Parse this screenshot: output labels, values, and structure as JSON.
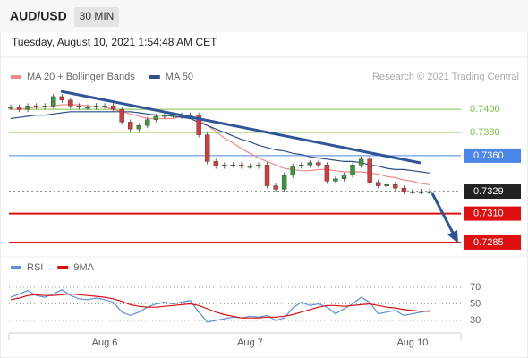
{
  "header": {
    "symbol": "AUD/USD",
    "interval": "30 MIN",
    "timestamp": "Tuesday, August 10, 2021 1:54:48 AM CET",
    "credit": "Research © 2021 Trading Central"
  },
  "chart_data": [
    {
      "type": "candle-line",
      "values": [
        0.7402,
        0.74,
        0.7403,
        0.7402,
        0.7403,
        0.7411,
        0.7408,
        0.7403,
        0.7402,
        0.7402,
        0.7403,
        0.7403,
        0.74,
        0.7389,
        0.7383,
        0.7386,
        0.7391,
        0.7394,
        0.7395,
        0.7395,
        0.7394,
        0.7395,
        0.7378,
        0.7355,
        0.7351,
        0.7352,
        0.7352,
        0.7351,
        0.7351,
        0.7352,
        0.7334,
        0.7331,
        0.7343,
        0.7351,
        0.7352,
        0.7354,
        0.7352,
        0.7338,
        0.734,
        0.7343,
        0.7352,
        0.7357,
        0.7337,
        0.7334,
        0.7335,
        0.7332,
        0.7329,
        0.7329,
        0.7329,
        0.7329
      ],
      "up_color": "#3a9a3a",
      "down_color": "#d83a3a",
      "series": [
        {
          "name": "MA 20 + Bollinger Bands",
          "color": "#f08a8a",
          "values": [
            0.74,
            0.74,
            0.7401,
            0.7402,
            0.7402,
            0.7403,
            0.7404,
            0.7404,
            0.7404,
            0.7403,
            0.7402,
            0.7402,
            0.74,
            0.7398,
            0.7396,
            0.7394,
            0.7392,
            0.7392,
            0.7392,
            0.7392,
            0.7394,
            0.7394,
            0.7391,
            0.7386,
            0.7381,
            0.7375,
            0.7371,
            0.7366,
            0.7362,
            0.7358,
            0.7355,
            0.7352,
            0.7349,
            0.7348,
            0.7347,
            0.7347,
            0.7348,
            0.7348,
            0.7347,
            0.7346,
            0.7346,
            0.7346,
            0.7345,
            0.7344,
            0.7342,
            0.7341,
            0.7339,
            0.7338,
            0.7336,
            0.7335
          ]
        },
        {
          "name": "MA 50",
          "color": "#2e4f8a",
          "values": [
            0.7392,
            0.7393,
            0.7394,
            0.7395,
            0.7395,
            0.7396,
            0.7397,
            0.7398,
            0.7398,
            0.7398,
            0.7398,
            0.7398,
            0.7398,
            0.7398,
            0.7398,
            0.7397,
            0.7396,
            0.7395,
            0.7395,
            0.7394,
            0.7393,
            0.7392,
            0.7389,
            0.7386,
            0.7383,
            0.738,
            0.7377,
            0.7374,
            0.7372,
            0.7369,
            0.7367,
            0.7365,
            0.7364,
            0.7362,
            0.7361,
            0.7359,
            0.7358,
            0.7357,
            0.7356,
            0.7355,
            0.7355,
            0.7354,
            0.7352,
            0.7351,
            0.7349,
            0.7348,
            0.7348,
            0.7347,
            0.7346,
            0.7345
          ]
        }
      ],
      "levels": [
        {
          "value": 0.74,
          "label": "0.7400",
          "color": "#7cc142",
          "boxed": false,
          "dotted": false
        },
        {
          "value": 0.738,
          "label": "0.7380",
          "color": "#7cc142",
          "boxed": false,
          "dotted": false
        },
        {
          "value": 0.736,
          "label": "0.7360",
          "color": "#4a86e8",
          "boxed": true,
          "dotted": false
        },
        {
          "value": 0.7329,
          "label": "0.7329",
          "color": "#222222",
          "boxed": true,
          "dotted": true
        },
        {
          "value": 0.731,
          "label": "0.7310",
          "color": "#e01010",
          "boxed": true,
          "dotted": false
        },
        {
          "value": 0.7285,
          "label": "0.7285",
          "color": "#e01010",
          "boxed": true,
          "dotted": false
        }
      ],
      "ylim": [
        0.7278,
        0.7421
      ]
    },
    {
      "type": "line",
      "categories": [
        null,
        null,
        null,
        null,
        null,
        null,
        null,
        null,
        null,
        null,
        null,
        "Aug 6",
        null,
        null,
        null,
        null,
        null,
        null,
        null,
        null,
        null,
        null,
        null,
        null,
        null,
        null,
        null,
        null,
        "Aug 7",
        null,
        null,
        null,
        null,
        null,
        null,
        null,
        null,
        null,
        null,
        null,
        null,
        null,
        null,
        null,
        null,
        null,
        null,
        "Aug 10",
        null,
        null
      ],
      "series": [
        {
          "name": "RSI",
          "color": "#5b8fd9",
          "values": [
            58,
            62,
            66,
            60,
            58,
            62,
            67,
            60,
            56,
            55,
            57,
            55,
            52,
            40,
            36,
            40,
            46,
            50,
            52,
            50,
            52,
            54,
            40,
            28,
            30,
            32,
            34,
            33,
            35,
            34,
            36,
            30,
            33,
            45,
            52,
            48,
            50,
            46,
            38,
            44,
            50,
            58,
            52,
            38,
            40,
            42,
            36,
            38,
            40,
            42
          ]
        },
        {
          "name": "9MA",
          "color": "#d81010",
          "values": [
            55,
            57,
            60,
            61,
            60,
            60,
            61,
            62,
            61,
            60,
            59,
            58,
            56,
            53,
            49,
            47,
            46,
            46,
            47,
            48,
            49,
            50,
            48,
            44,
            40,
            37,
            35,
            33,
            33,
            33,
            34,
            34,
            35,
            37,
            40,
            43,
            46,
            48,
            48,
            47,
            48,
            49,
            50,
            48,
            46,
            45,
            43,
            42,
            41,
            41
          ]
        }
      ],
      "ylim": [
        17,
        84
      ],
      "yticks": [
        70,
        50,
        30
      ]
    }
  ]
}
